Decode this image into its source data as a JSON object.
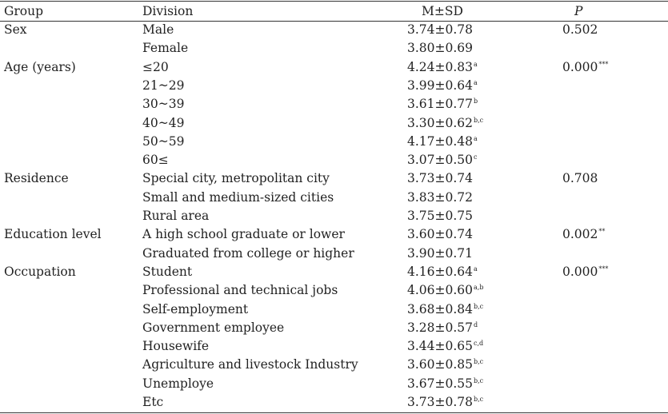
{
  "header": {
    "group": "Group",
    "division": "Division",
    "msd": "M±SD",
    "p": "P"
  },
  "rows": [
    {
      "group": "Sex",
      "division": "Male",
      "msd": "3.74±0.78",
      "sup": "",
      "p": "0.502",
      "psup": ""
    },
    {
      "group": "",
      "division": "Female",
      "msd": "3.80±0.69",
      "sup": "",
      "p": "",
      "psup": ""
    },
    {
      "group": "Age (years)",
      "division": "≤20",
      "msd": "4.24±0.83",
      "sup": "a",
      "p": "0.000",
      "psup": "***"
    },
    {
      "group": "",
      "division": "21~29",
      "msd": "3.99±0.64",
      "sup": "a",
      "p": "",
      "psup": ""
    },
    {
      "group": "",
      "division": "30~39",
      "msd": "3.61±0.77",
      "sup": "b",
      "p": "",
      "psup": ""
    },
    {
      "group": "",
      "division": "40~49",
      "msd": "3.30±0.62",
      "sup": "b,c",
      "p": "",
      "psup": ""
    },
    {
      "group": "",
      "division": "50~59",
      "msd": "4.17±0.48",
      "sup": "a",
      "p": "",
      "psup": ""
    },
    {
      "group": "",
      "division": "60≤",
      "msd": "3.07±0.50",
      "sup": "c",
      "p": "",
      "psup": ""
    },
    {
      "group": "Residence",
      "division": "Special city, metropolitan city",
      "msd": "3.73±0.74",
      "sup": "",
      "p": "0.708",
      "psup": ""
    },
    {
      "group": "",
      "division": "Small and medium-sized cities",
      "msd": "3.83±0.72",
      "sup": "",
      "p": "",
      "psup": ""
    },
    {
      "group": "",
      "division": "Rural area",
      "msd": "3.75±0.75",
      "sup": "",
      "p": "",
      "psup": ""
    },
    {
      "group": "Education level",
      "division": "A high school graduate or lower",
      "msd": "3.60±0.74",
      "sup": "",
      "p": "0.002",
      "psup": "**"
    },
    {
      "group": "",
      "division": "Graduated from college or higher",
      "msd": "3.90±0.71",
      "sup": "",
      "p": "",
      "psup": ""
    },
    {
      "group": "Occupation",
      "division": "Student",
      "msd": "4.16±0.64",
      "sup": "a",
      "p": "0.000",
      "psup": "***"
    },
    {
      "group": "",
      "division": "Professional and technical jobs",
      "msd": "4.06±0.60",
      "sup": "a,b",
      "p": "",
      "psup": ""
    },
    {
      "group": "",
      "division": "Self-employment",
      "msd": "3.68±0.84",
      "sup": "b,c",
      "p": "",
      "psup": ""
    },
    {
      "group": "",
      "division": "Government employee",
      "msd": "3.28±0.57",
      "sup": "d",
      "p": "",
      "psup": ""
    },
    {
      "group": "",
      "division": "Housewife",
      "msd": "3.44±0.65",
      "sup": "c,d",
      "p": "",
      "psup": ""
    },
    {
      "group": "",
      "division": "Agriculture and livestock Industry",
      "msd": "3.60±0.85",
      "sup": "b,c",
      "p": "",
      "psup": ""
    },
    {
      "group": "",
      "division": "Unemploye",
      "msd": "3.67±0.55",
      "sup": "b,c",
      "p": "",
      "psup": ""
    },
    {
      "group": "",
      "division": "Etc",
      "msd": "3.73±0.78",
      "sup": "b,c",
      "p": "",
      "psup": ""
    }
  ]
}
